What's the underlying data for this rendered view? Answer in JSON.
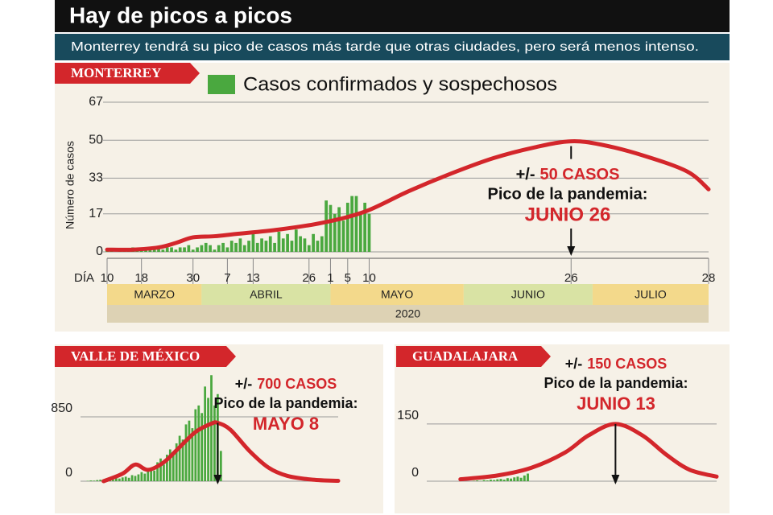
{
  "header": {
    "title": "Hay de picos a picos",
    "subtitle": "Monterrey tendrá su pico de casos más tarde que otras ciudades, pero será menos intenso."
  },
  "chart_data": [
    {
      "type": "bar",
      "title": "MONTERREY",
      "ylabel": "Número de casos",
      "xlabel": "DÍA",
      "ylim": [
        0,
        67
      ],
      "yticks": [
        0,
        17,
        33,
        50,
        67
      ],
      "grid": true,
      "xlim": [
        0,
        140
      ],
      "xticks": [
        {
          "value": 0,
          "label": "10"
        },
        {
          "value": 8,
          "label": "18"
        },
        {
          "value": 20,
          "label": "30"
        },
        {
          "value": 28,
          "label": "7"
        },
        {
          "value": 34,
          "label": "13"
        },
        {
          "value": 47,
          "label": "26"
        },
        {
          "value": 52,
          "label": "1"
        },
        {
          "value": 56,
          "label": "5"
        },
        {
          "value": 61,
          "label": "10"
        },
        {
          "value": 108,
          "label": "26"
        },
        {
          "value": 140,
          "label": "28"
        }
      ],
      "months": [
        {
          "label": "MARZO",
          "start": 0,
          "end": 22
        },
        {
          "label": "ABRIL",
          "start": 22,
          "end": 52
        },
        {
          "label": "MAYO",
          "start": 52,
          "end": 83
        },
        {
          "label": "JUNIO",
          "start": 83,
          "end": 113
        },
        {
          "label": "JULIO",
          "start": 113,
          "end": 140
        }
      ],
      "year": "2020",
      "annotation": {
        "prefix": "+/-",
        "value": "50 CASOS",
        "text": "Pico de la pandemia:",
        "date": "JUNIO 26"
      },
      "series": [
        {
          "name": "Casos confirmados y sospechosos",
          "type": "bar",
          "color": "#4aa83f",
          "x": [
            0,
            1,
            2,
            3,
            4,
            5,
            6,
            7,
            8,
            9,
            10,
            11,
            12,
            13,
            14,
            15,
            16,
            17,
            18,
            19,
            20,
            21,
            22,
            23,
            24,
            25,
            26,
            27,
            28,
            29,
            30,
            31,
            32,
            33,
            34,
            35,
            36,
            37,
            38,
            39,
            40,
            41,
            42,
            43,
            44,
            45,
            46,
            47,
            48,
            49,
            50,
            51,
            52,
            53,
            54,
            55,
            56,
            57,
            58,
            59,
            60,
            61
          ],
          "values": [
            1,
            1,
            0,
            1,
            1,
            1,
            2,
            1,
            1,
            2,
            1,
            1,
            2,
            1,
            2,
            2,
            1,
            2,
            2,
            3,
            1,
            2,
            3,
            4,
            3,
            1,
            3,
            4,
            2,
            5,
            4,
            6,
            3,
            5,
            8,
            4,
            6,
            5,
            7,
            4,
            9,
            6,
            8,
            5,
            10,
            7,
            6,
            3,
            8,
            5,
            7,
            23,
            21,
            17,
            20,
            14,
            22,
            25,
            25,
            18,
            22,
            17
          ]
        },
        {
          "type": "line",
          "color": "#d3262b",
          "x": [
            0,
            6,
            12,
            16,
            20,
            25,
            30,
            40,
            50,
            60,
            70,
            80,
            90,
            100,
            108,
            115,
            125,
            135,
            140
          ],
          "values": [
            1,
            1,
            2,
            4,
            6.5,
            7,
            8,
            10,
            13,
            18,
            27,
            35,
            42,
            47,
            49.5,
            48,
            43,
            36,
            28
          ]
        }
      ]
    },
    {
      "type": "bar",
      "title": "VALLE DE MÉXICO",
      "ylim": [
        0,
        1700
      ],
      "yticks": [
        0,
        850
      ],
      "grid": true,
      "xlim": [
        0,
        80
      ],
      "annotation": {
        "prefix": "+/-",
        "value": "700 CASOS",
        "text": "Pico de la pandemia:",
        "date": "MAYO 8"
      },
      "series": [
        {
          "type": "bar",
          "color": "#4aa83f",
          "x": [
            0,
            1,
            2,
            3,
            4,
            5,
            6,
            7,
            8,
            9,
            10,
            11,
            12,
            13,
            14,
            15,
            16,
            17,
            18,
            19,
            20,
            21,
            22,
            23,
            24,
            25,
            26,
            27,
            28,
            29,
            30,
            31,
            32,
            33,
            34,
            35,
            36,
            37,
            38,
            39,
            40,
            41,
            42,
            43
          ],
          "values": [
            0,
            5,
            10,
            8,
            15,
            20,
            12,
            25,
            30,
            20,
            40,
            35,
            50,
            60,
            45,
            80,
            70,
            90,
            120,
            100,
            150,
            180,
            140,
            250,
            300,
            220,
            350,
            420,
            380,
            500,
            600,
            550,
            750,
            800,
            700,
            950,
            1000,
            900,
            1250,
            1100,
            1400,
            1000,
            1150,
            400
          ]
        },
        {
          "type": "line",
          "color": "#d3262b",
          "x": [
            6,
            12,
            16,
            20,
            25,
            30,
            35,
            40,
            42,
            46,
            52,
            58,
            64,
            72,
            80
          ],
          "values": [
            0,
            100,
            220,
            150,
            250,
            450,
            650,
            760,
            770,
            680,
            400,
            180,
            70,
            20,
            5
          ]
        }
      ]
    },
    {
      "type": "bar",
      "title": "GUADALAJARA",
      "ylim": [
        0,
        270
      ],
      "yticks": [
        0,
        150
      ],
      "grid": true,
      "xlim": [
        0,
        80
      ],
      "annotation": {
        "prefix": "+/-",
        "value": "150 CASOS",
        "text": "Pico de la pandemia:",
        "date": "JUNIO 13"
      },
      "series": [
        {
          "type": "bar",
          "color": "#4aa83f",
          "x": [
            8,
            9,
            10,
            11,
            12,
            13,
            14,
            15,
            16,
            17,
            18,
            19,
            20,
            21,
            22,
            23,
            24
          ],
          "values": [
            1,
            2,
            1,
            3,
            2,
            4,
            3,
            5,
            6,
            4,
            8,
            7,
            10,
            12,
            9,
            15,
            20
          ]
        },
        {
          "type": "line",
          "color": "#d3262b",
          "x": [
            4,
            15,
            25,
            35,
            42,
            50,
            58,
            65,
            72,
            80
          ],
          "values": [
            5,
            15,
            35,
            75,
            120,
            150,
            120,
            70,
            30,
            12
          ]
        }
      ]
    }
  ]
}
